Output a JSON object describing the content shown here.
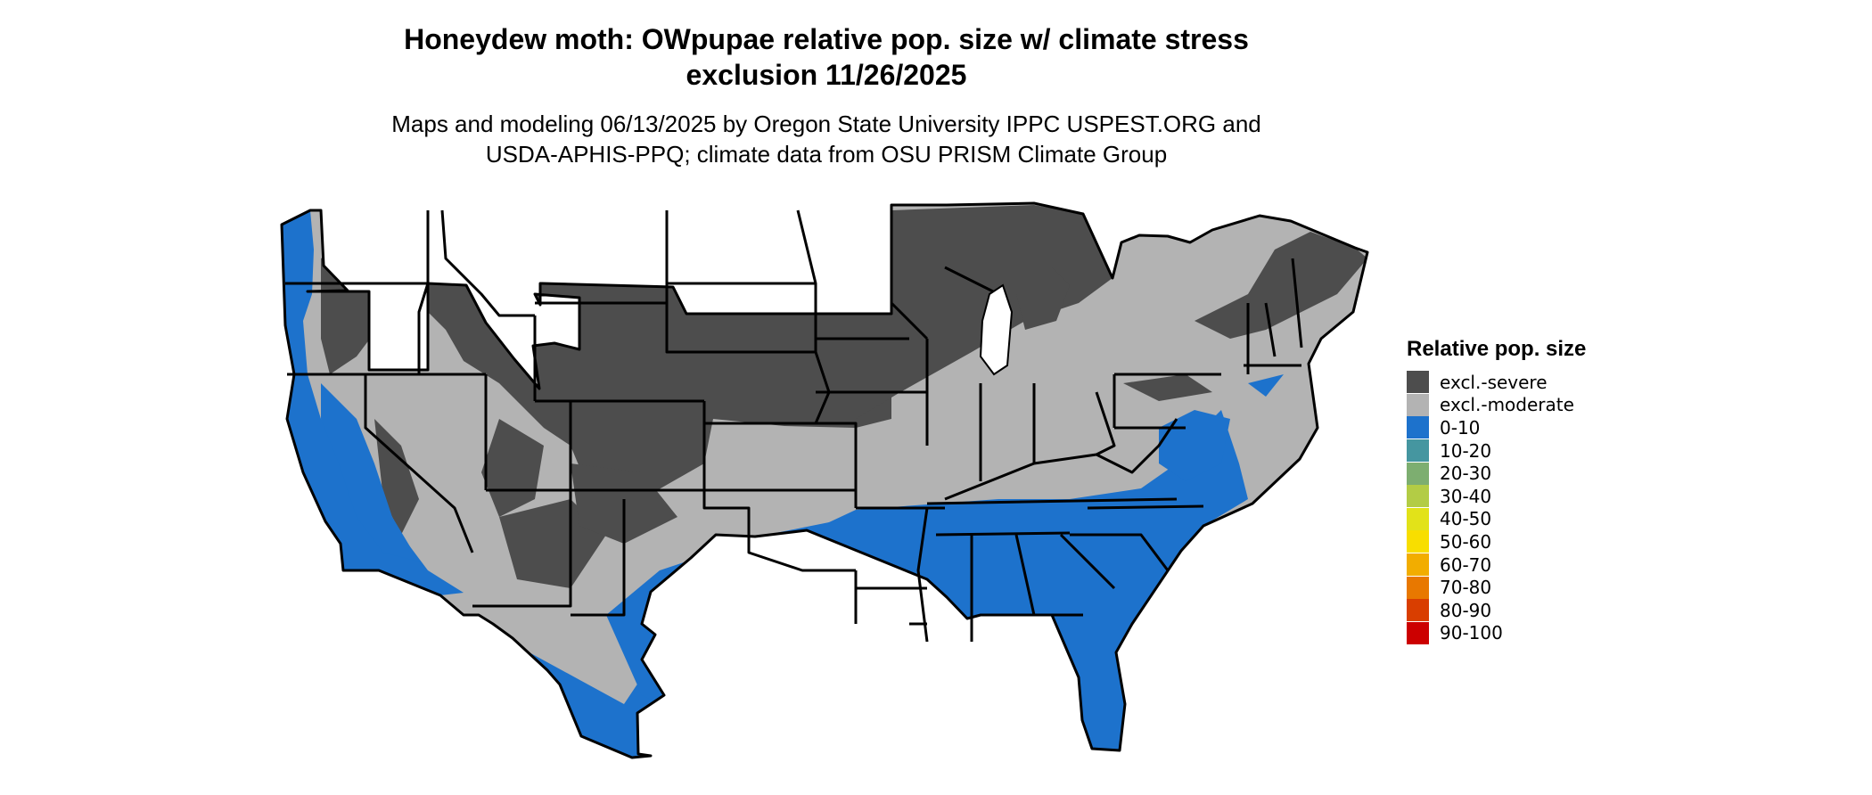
{
  "title_line1": "Honeydew moth: OWpupae relative pop. size w/ climate stress",
  "title_line2": "exclusion 11/26/2025",
  "subtitle_line1": "Maps and modeling 06/13/2025 by Oregon State University IPPC USPEST.ORG and",
  "subtitle_line2": "USDA-APHIS-PPQ; climate data from OSU PRISM Climate Group",
  "legend": {
    "title": "Relative pop. size",
    "items": [
      {
        "label": "excl.-severe",
        "color": "#4d4d4d"
      },
      {
        "label": "excl.-moderate",
        "color": "#b3b3b3"
      },
      {
        "label": "0-10",
        "color": "#1d72cc"
      },
      {
        "label": "10-20",
        "color": "#4596a0"
      },
      {
        "label": "20-30",
        "color": "#7dae70"
      },
      {
        "label": "30-40",
        "color": "#b3cc45"
      },
      {
        "label": "40-50",
        "color": "#e2e219"
      },
      {
        "label": "50-60",
        "color": "#f8de00"
      },
      {
        "label": "60-70",
        "color": "#f2ad00"
      },
      {
        "label": "70-80",
        "color": "#e87800"
      },
      {
        "label": "80-90",
        "color": "#d93e00"
      },
      {
        "label": "90-100",
        "color": "#cc0000"
      }
    ]
  }
}
